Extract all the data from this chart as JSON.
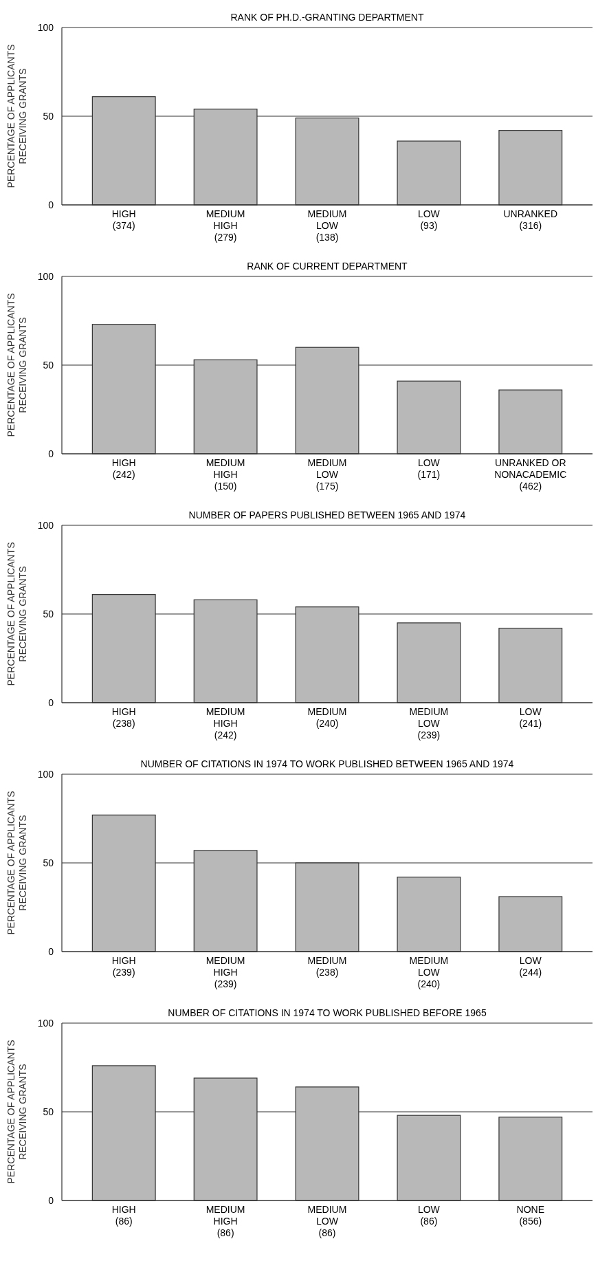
{
  "chart_data": [
    {
      "type": "bar",
      "title": "RANK OF PH.D.-GRANTING DEPARTMENT",
      "ylabel": "PERCENTAGE OF APPLICANTS\nRECEIVING GRANTS",
      "categories": [
        "HIGH\n(374)",
        "MEDIUM\nHIGH\n(279)",
        "MEDIUM\nLOW\n(138)",
        "LOW\n(93)",
        "UNRANKED\n(316)"
      ],
      "values": [
        61,
        54,
        49,
        36,
        42
      ],
      "color": "#b8b8b8",
      "ylim": [
        0,
        100
      ],
      "yticks": [
        0,
        50,
        100
      ],
      "ref_lines": [
        {
          "axis": "y",
          "value": 50
        }
      ]
    },
    {
      "type": "bar",
      "title": "RANK OF CURRENT DEPARTMENT",
      "ylabel": "PERCENTAGE OF APPLICANTS\nRECEIVING GRANTS",
      "categories": [
        "HIGH\n(242)",
        "MEDIUM\nHIGH\n(150)",
        "MEDIUM\nLOW\n(175)",
        "LOW\n(171)",
        "UNRANKED OR\nNONACADEMIC\n(462)"
      ],
      "values": [
        73,
        53,
        60,
        41,
        36
      ],
      "color": "#b8b8b8",
      "ylim": [
        0,
        100
      ],
      "yticks": [
        0,
        50,
        100
      ],
      "ref_lines": [
        {
          "axis": "y",
          "value": 50
        }
      ]
    },
    {
      "type": "bar",
      "title": "NUMBER OF PAPERS PUBLISHED BETWEEN 1965 AND 1974",
      "ylabel": "PERCENTAGE OF APPLICANTS\nRECEIVING GRANTS",
      "categories": [
        "HIGH\n(238)",
        "MEDIUM\nHIGH\n(242)",
        "MEDIUM\n(240)",
        "MEDIUM\nLOW\n(239)",
        "LOW\n(241)"
      ],
      "values": [
        61,
        58,
        54,
        45,
        42
      ],
      "color": "#b8b8b8",
      "ylim": [
        0,
        100
      ],
      "yticks": [
        0,
        50,
        100
      ],
      "ref_lines": [
        {
          "axis": "y",
          "value": 50
        }
      ]
    },
    {
      "type": "bar",
      "title": "NUMBER OF CITATIONS IN 1974 TO WORK PUBLISHED BETWEEN 1965 AND 1974",
      "ylabel": "PERCENTAGE OF APPLICANTS\nRECEIVING GRANTS",
      "categories": [
        "HIGH\n(239)",
        "MEDIUM\nHIGH\n(239)",
        "MEDIUM\n(238)",
        "MEDIUM\nLOW\n(240)",
        "LOW\n(244)"
      ],
      "values": [
        77,
        57,
        50,
        42,
        31
      ],
      "color": "#b8b8b8",
      "ylim": [
        0,
        100
      ],
      "yticks": [
        0,
        50,
        100
      ],
      "ref_lines": [
        {
          "axis": "y",
          "value": 50
        }
      ]
    },
    {
      "type": "bar",
      "title": "NUMBER OF CITATIONS IN 1974 TO WORK PUBLISHED BEFORE 1965",
      "ylabel": "PERCENTAGE OF APPLICANTS\nRECEIVING GRANTS",
      "categories": [
        "HIGH\n(86)",
        "MEDIUM\nHIGH\n(86)",
        "MEDIUM\nLOW\n(86)",
        "LOW\n(86)",
        "NONE\n(856)"
      ],
      "values": [
        76,
        69,
        64,
        48,
        47
      ],
      "color": "#b8b8b8",
      "ylim": [
        0,
        100
      ],
      "yticks": [
        0,
        50,
        100
      ],
      "ref_lines": [
        {
          "axis": "y",
          "value": 50
        }
      ]
    }
  ]
}
